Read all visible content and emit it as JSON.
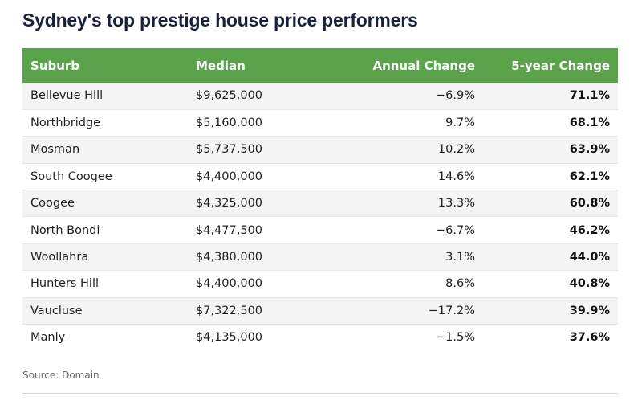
{
  "title": "Sydney's top prestige house price performers",
  "source": "Source: Domain",
  "colors": {
    "header_bg": "#5aa34a",
    "header_text": "#ffffff",
    "row_alt": "#f4f4f4"
  },
  "chart_data": {
    "type": "table",
    "title": "Sydney's top prestige house price performers",
    "columns": [
      "Suburb",
      "Median",
      "Annual Change",
      "5-year Change"
    ],
    "rows": [
      [
        "Bellevue Hill",
        "$9,625,000",
        "−6.9%",
        "71.1%"
      ],
      [
        "Northbridge",
        "$5,160,000",
        "9.7%",
        "68.1%"
      ],
      [
        "Mosman",
        "$5,737,500",
        "10.2%",
        "63.9%"
      ],
      [
        "South Coogee",
        "$4,400,000",
        "14.6%",
        "62.1%"
      ],
      [
        "Coogee",
        "$4,325,000",
        "13.3%",
        "60.8%"
      ],
      [
        "North Bondi",
        "$4,477,500",
        "−6.7%",
        "46.2%"
      ],
      [
        "Woollahra",
        "$4,380,000",
        "3.1%",
        "44.0%"
      ],
      [
        "Hunters Hill",
        "$4,400,000",
        "8.6%",
        "40.8%"
      ],
      [
        "Vaucluse",
        "$7,322,500",
        "−17.2%",
        "39.9%"
      ],
      [
        "Manly",
        "$4,135,000",
        "−1.5%",
        "37.6%"
      ]
    ]
  }
}
